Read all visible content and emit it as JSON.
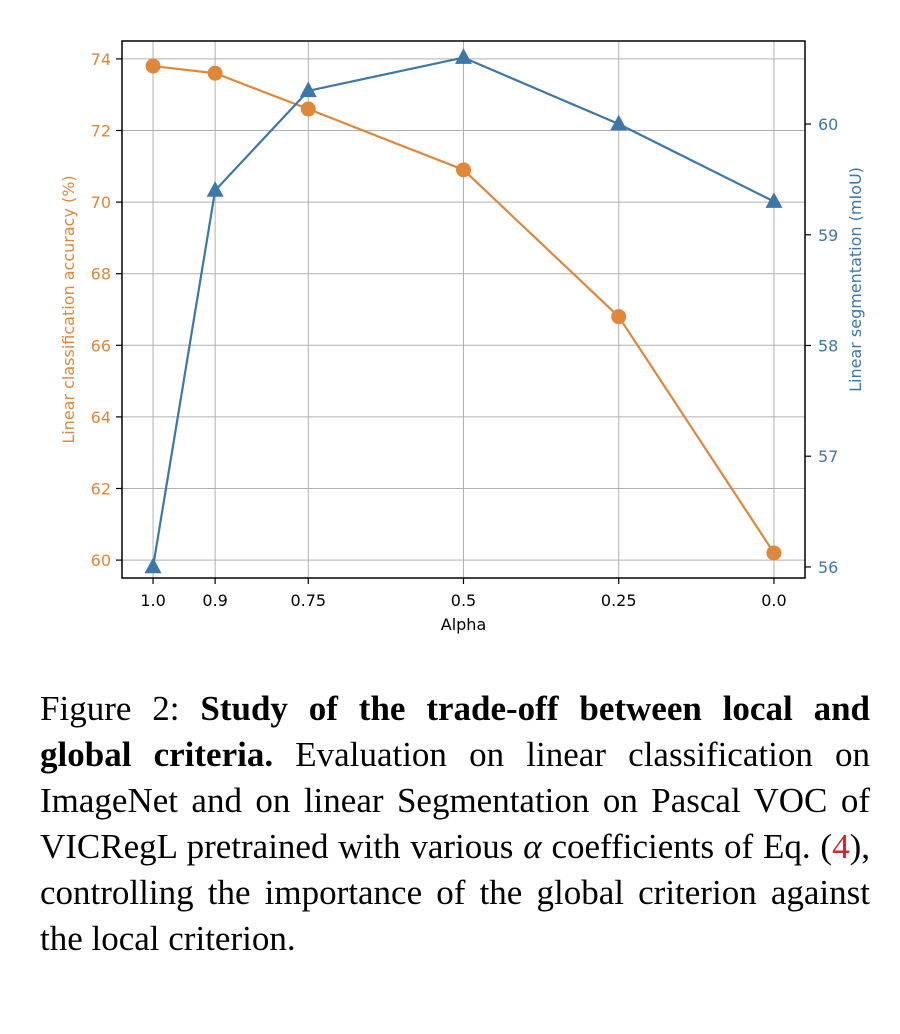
{
  "chart_data": {
    "type": "line",
    "xlabel": "Alpha",
    "categories": [
      "1.0",
      "0.9",
      "0.75",
      "0.5",
      "0.25",
      "0.0"
    ],
    "x": [
      1.0,
      0.9,
      0.75,
      0.5,
      0.25,
      0.0
    ],
    "xlim": [
      1.05,
      -0.05
    ],
    "y_left": {
      "label": "Linear classification accuracy (%)",
      "ticks": [
        "60",
        "62",
        "64",
        "66",
        "68",
        "70",
        "72",
        "74"
      ],
      "tick_values": [
        60,
        62,
        64,
        66,
        68,
        70,
        72,
        74
      ],
      "lim": [
        59.5,
        74.5
      ],
      "color": "#e0873a"
    },
    "y_right": {
      "label": "Linear segmentation (mIoU)",
      "ticks": [
        "56",
        "57",
        "58",
        "59",
        "60"
      ],
      "tick_values": [
        56,
        57,
        58,
        59,
        60
      ],
      "lim": [
        55.9,
        60.75
      ],
      "color": "#3d76a8"
    },
    "series": [
      {
        "axis": "left",
        "marker": "circle",
        "color": "#e0873a",
        "values": [
          73.8,
          73.6,
          72.6,
          70.9,
          66.8,
          60.2
        ]
      },
      {
        "axis": "right",
        "marker": "triangle",
        "color": "#3d76a8",
        "values": [
          56.0,
          59.4,
          60.3,
          60.6,
          60.0,
          59.3
        ]
      }
    ],
    "grid": true
  },
  "caption": {
    "prefix": "Figure 2: ",
    "bold": "Study of the trade-off between local and global criteria.",
    "text_1": " Evaluation on linear classifi­cation on ImageNet and on linear Segmentation on Pascal VOC of VICRegL pretrained with vari­ous ",
    "alpha": "α",
    "text_2": " coefficients of Eq. (",
    "ref": "4",
    "text_3": "), controlling the im­portance of the global criterion against the local criterion."
  }
}
